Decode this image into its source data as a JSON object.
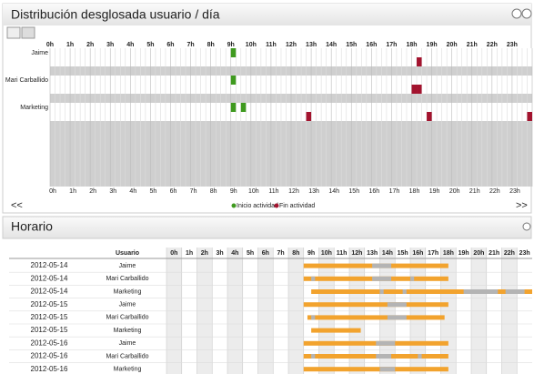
{
  "header": {
    "title": "Distribución desglosada usuario / día"
  },
  "hours": [
    "0h",
    "1h",
    "2h",
    "3h",
    "4h",
    "5h",
    "6h",
    "7h",
    "8h",
    "9h",
    "10h",
    "11h",
    "12h",
    "13h",
    "14h",
    "15h",
    "16h",
    "17h",
    "18h",
    "19h",
    "20h",
    "21h",
    "22h",
    "23h"
  ],
  "activity_chart": {
    "users": [
      {
        "name": "Jaime",
        "start": [
          9
        ],
        "end": [
          18.25
        ]
      },
      {
        "name": "Mari Carballido",
        "start": [
          9
        ],
        "end": [
          18,
          18.25
        ]
      },
      {
        "name": "Marketing",
        "start": [
          9,
          9.5
        ],
        "end": [
          12.75,
          18.75,
          23.75
        ]
      }
    ],
    "legend": {
      "start": "Inicio actividad",
      "end": "Fin actividad"
    },
    "start_color": "#3f9a1f",
    "end_color": "#a3132e",
    "prev": "<<",
    "next": ">>"
  },
  "schedule": {
    "title": "Horario",
    "user_header": "Usuario",
    "active_color": "#f2a32e",
    "idle_color": "#b4b4b4",
    "rows": [
      {
        "date": "2012-05-14",
        "user": "Jaime",
        "active": [
          9,
          18.5
        ],
        "idle": [
          [
            13.5,
            14.75
          ]
        ]
      },
      {
        "date": "2012-05-14",
        "user": "Mari Carballido",
        "active": [
          9,
          18.5
        ],
        "idle": [
          [
            9.5,
            9.75
          ],
          [
            13.5,
            14.75
          ],
          [
            16,
            16.25
          ]
        ]
      },
      {
        "date": "2012-05-14",
        "user": "Marketing",
        "active": [
          9.5,
          24
        ],
        "idle": [
          [
            14,
            14.25
          ],
          [
            15.5,
            15.75
          ],
          [
            19.5,
            21.75
          ],
          [
            22.25,
            23.5
          ]
        ]
      },
      {
        "date": "2012-05-15",
        "user": "Jaime",
        "active": [
          9,
          18.5
        ],
        "idle": [
          [
            14.5,
            15.75
          ]
        ]
      },
      {
        "date": "2012-05-15",
        "user": "Mari Carballido",
        "active": [
          9.25,
          18.25
        ],
        "idle": [
          [
            9.5,
            9.75
          ],
          [
            14.5,
            15.75
          ]
        ]
      },
      {
        "date": "2012-05-15",
        "user": "Marketing",
        "active": [
          9.5,
          12.75
        ],
        "idle": []
      },
      {
        "date": "2012-05-16",
        "user": "Jaime",
        "active": [
          9,
          18.5
        ],
        "idle": [
          [
            13.75,
            15
          ]
        ]
      },
      {
        "date": "2012-05-16",
        "user": "Mari Carballido",
        "active": [
          9,
          18.5
        ],
        "idle": [
          [
            9.5,
            9.75
          ],
          [
            13.75,
            14.75
          ],
          [
            16.5,
            16.75
          ]
        ]
      },
      {
        "date": "2012-05-16",
        "user": "Marketing",
        "active": [
          9,
          18.5
        ],
        "idle": [
          [
            14,
            15
          ]
        ]
      }
    ]
  }
}
